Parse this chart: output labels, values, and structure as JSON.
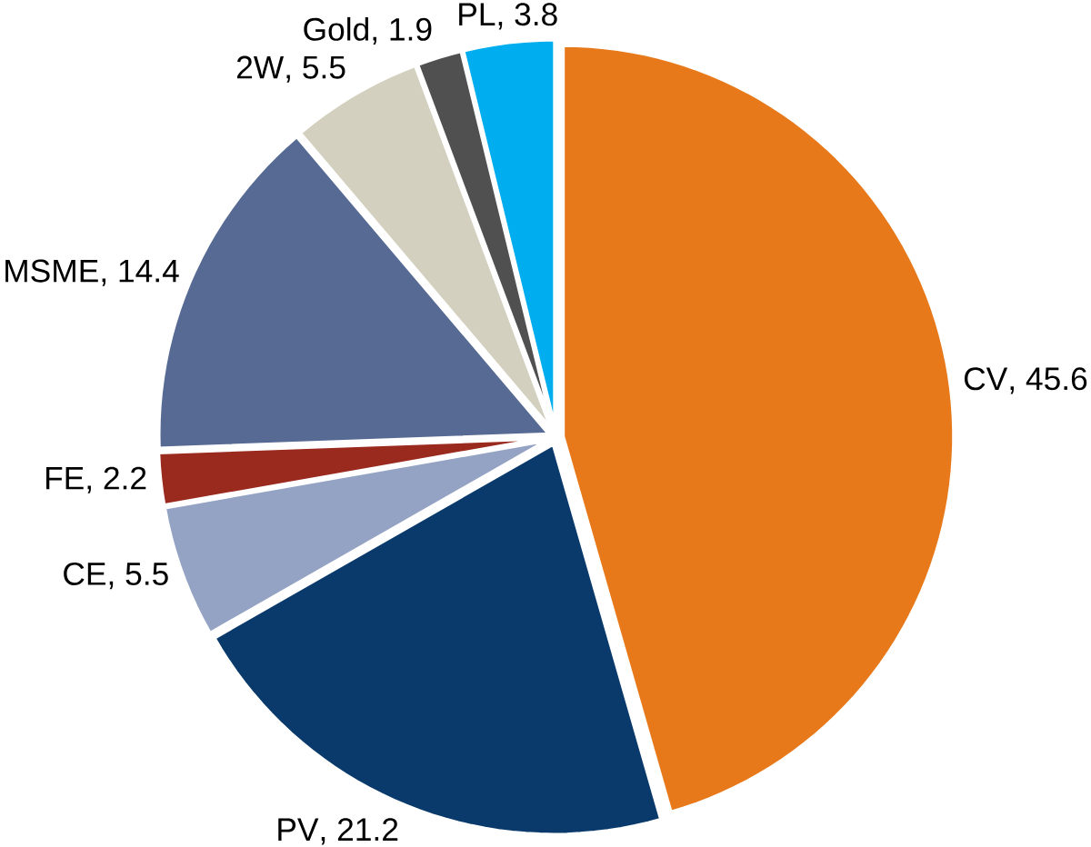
{
  "chart_data": {
    "type": "pie",
    "categories": [
      "CV",
      "PV",
      "CE",
      "FE",
      "MSME",
      "2W",
      "Gold",
      "PL"
    ],
    "values": [
      45.6,
      21.2,
      5.5,
      2.2,
      14.4,
      5.5,
      1.9,
      3.8
    ],
    "value_labels": [
      ", 45.6",
      ", 21.2",
      ", 5.5",
      ", 2.2",
      ", 14.4",
      ", 5.5",
      ", 1.9",
      ", 3.8"
    ],
    "colors": [
      "#e8791b",
      "#0a3a6b",
      "#94a3c4",
      "#9a2a1e",
      "#566a94",
      "#d3d0bf",
      "#505050",
      "#00aeef"
    ]
  }
}
